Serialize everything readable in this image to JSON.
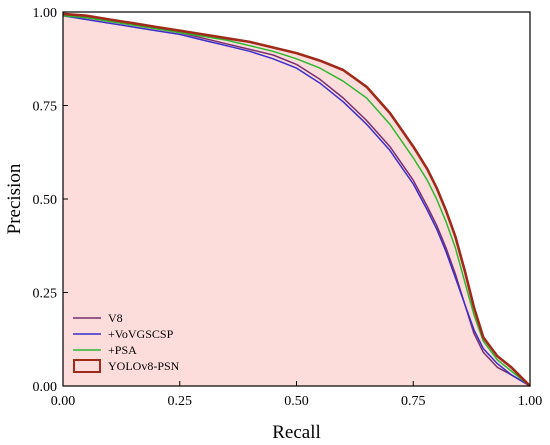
{
  "chart_data": {
    "type": "area",
    "xlabel": "Recall",
    "ylabel": "Precision",
    "xlim": [
      0,
      1
    ],
    "ylim": [
      0,
      1
    ],
    "xticks": [
      "0.00",
      "0.25",
      "0.50",
      "0.75",
      "1.00"
    ],
    "yticks": [
      "0.00",
      "0.25",
      "0.50",
      "0.75",
      "1.00"
    ],
    "grid": false,
    "legend_position": "bottom-left",
    "series": [
      {
        "name": "V8",
        "color": "#7a2f6e",
        "style": "line",
        "points": [
          [
            0,
            0.99
          ],
          [
            0.05,
            0.985
          ],
          [
            0.1,
            0.975
          ],
          [
            0.15,
            0.965
          ],
          [
            0.2,
            0.955
          ],
          [
            0.25,
            0.945
          ],
          [
            0.3,
            0.93
          ],
          [
            0.35,
            0.915
          ],
          [
            0.4,
            0.9
          ],
          [
            0.45,
            0.885
          ],
          [
            0.5,
            0.86
          ],
          [
            0.55,
            0.82
          ],
          [
            0.6,
            0.77
          ],
          [
            0.65,
            0.71
          ],
          [
            0.7,
            0.64
          ],
          [
            0.75,
            0.55
          ],
          [
            0.78,
            0.48
          ],
          [
            0.8,
            0.43
          ],
          [
            0.82,
            0.37
          ],
          [
            0.84,
            0.3
          ],
          [
            0.86,
            0.22
          ],
          [
            0.88,
            0.14
          ],
          [
            0.9,
            0.09
          ],
          [
            0.93,
            0.05
          ],
          [
            0.96,
            0.03
          ],
          [
            1.0,
            0.0
          ]
        ]
      },
      {
        "name": "+VoVGSCSP",
        "color": "#3b2fc9",
        "style": "line",
        "points": [
          [
            0,
            0.99
          ],
          [
            0.05,
            0.98
          ],
          [
            0.1,
            0.97
          ],
          [
            0.15,
            0.96
          ],
          [
            0.2,
            0.95
          ],
          [
            0.25,
            0.94
          ],
          [
            0.3,
            0.925
          ],
          [
            0.35,
            0.91
          ],
          [
            0.4,
            0.895
          ],
          [
            0.45,
            0.875
          ],
          [
            0.5,
            0.85
          ],
          [
            0.55,
            0.81
          ],
          [
            0.6,
            0.76
          ],
          [
            0.65,
            0.7
          ],
          [
            0.7,
            0.63
          ],
          [
            0.75,
            0.54
          ],
          [
            0.78,
            0.47
          ],
          [
            0.8,
            0.42
          ],
          [
            0.82,
            0.36
          ],
          [
            0.84,
            0.29
          ],
          [
            0.86,
            0.22
          ],
          [
            0.88,
            0.15
          ],
          [
            0.9,
            0.1
          ],
          [
            0.93,
            0.06
          ],
          [
            0.96,
            0.03
          ],
          [
            1.0,
            0.0
          ]
        ]
      },
      {
        "name": "+PSA",
        "color": "#2eb82e",
        "style": "line",
        "points": [
          [
            0,
            0.99
          ],
          [
            0.05,
            0.985
          ],
          [
            0.1,
            0.975
          ],
          [
            0.15,
            0.965
          ],
          [
            0.2,
            0.955
          ],
          [
            0.25,
            0.945
          ],
          [
            0.3,
            0.935
          ],
          [
            0.35,
            0.925
          ],
          [
            0.4,
            0.91
          ],
          [
            0.45,
            0.895
          ],
          [
            0.5,
            0.875
          ],
          [
            0.55,
            0.85
          ],
          [
            0.6,
            0.815
          ],
          [
            0.65,
            0.77
          ],
          [
            0.7,
            0.7
          ],
          [
            0.75,
            0.61
          ],
          [
            0.78,
            0.55
          ],
          [
            0.8,
            0.5
          ],
          [
            0.82,
            0.44
          ],
          [
            0.84,
            0.37
          ],
          [
            0.86,
            0.28
          ],
          [
            0.88,
            0.19
          ],
          [
            0.9,
            0.12
          ],
          [
            0.93,
            0.07
          ],
          [
            0.96,
            0.04
          ],
          [
            1.0,
            0.0
          ]
        ]
      },
      {
        "name": "YOLOv8-PSN",
        "color": "#a02a1a",
        "fill": "#fddcdc",
        "style": "area",
        "points": [
          [
            0,
            0.995
          ],
          [
            0.05,
            0.99
          ],
          [
            0.1,
            0.98
          ],
          [
            0.15,
            0.97
          ],
          [
            0.2,
            0.96
          ],
          [
            0.25,
            0.95
          ],
          [
            0.3,
            0.94
          ],
          [
            0.35,
            0.93
          ],
          [
            0.4,
            0.92
          ],
          [
            0.45,
            0.905
          ],
          [
            0.5,
            0.89
          ],
          [
            0.55,
            0.87
          ],
          [
            0.6,
            0.845
          ],
          [
            0.65,
            0.8
          ],
          [
            0.7,
            0.73
          ],
          [
            0.75,
            0.64
          ],
          [
            0.78,
            0.58
          ],
          [
            0.8,
            0.53
          ],
          [
            0.82,
            0.47
          ],
          [
            0.84,
            0.4
          ],
          [
            0.86,
            0.31
          ],
          [
            0.88,
            0.21
          ],
          [
            0.9,
            0.13
          ],
          [
            0.93,
            0.08
          ],
          [
            0.96,
            0.05
          ],
          [
            1.0,
            0.0
          ]
        ]
      }
    ]
  }
}
